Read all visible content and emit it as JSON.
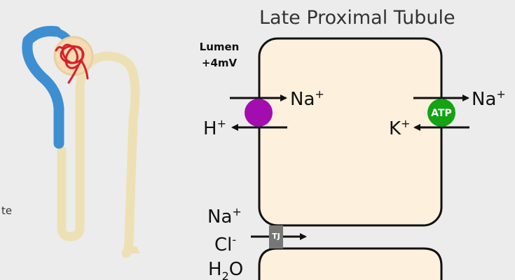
{
  "diagram": {
    "title": "Late Proximal Tubule",
    "lumen_label_1": "Lumen",
    "lumen_label_2": "+4mV",
    "left_edge_text": "te",
    "ions": {
      "na_base": "Na",
      "na_sup": "+",
      "h_base": "H",
      "h_sup": "+",
      "k_base": "K",
      "k_sup": "+",
      "cl_base": "Cl",
      "cl_sup": "-",
      "h2o_h": "H",
      "h2o_sub": "2",
      "h2o_o": "O"
    },
    "atp_label": "ATP",
    "tj_label": "TJ"
  },
  "colors": {
    "cell_fill": "#fdf0dd",
    "exchanger": "#a30db0",
    "atpase": "#13a313",
    "tight_junction": "#777777",
    "nephron_blue": "#3d8fd1",
    "nephron_tan": "#ede0b4",
    "glomerulus_red": "#d8202a",
    "background": "#ececec"
  }
}
